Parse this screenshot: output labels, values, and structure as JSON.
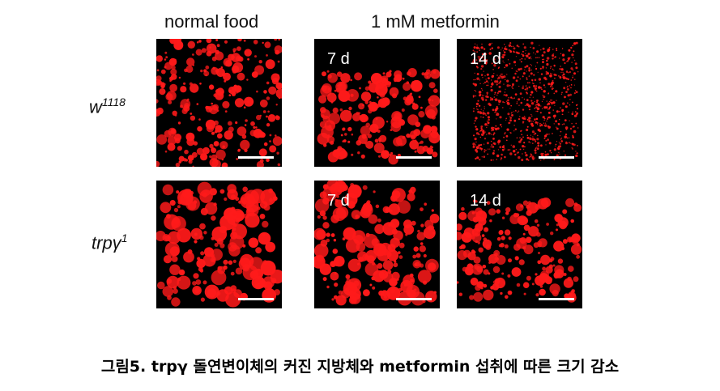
{
  "header": {
    "col1": "normal food",
    "col2": "1 mM metformin"
  },
  "rows": {
    "row1": {
      "label_base": "w",
      "label_sup": "1118"
    },
    "row2": {
      "label_base": "trpγ",
      "label_sup": "1"
    }
  },
  "timepoints": {
    "t7": "7 d",
    "t14": "14 d"
  },
  "colors": {
    "lipid": "#ff1a1a",
    "background": "#000000"
  },
  "caption": "그림5. trpγ 돌연변이체의 커진 지방체와 metformin 섭취에 따른 크기 감소"
}
